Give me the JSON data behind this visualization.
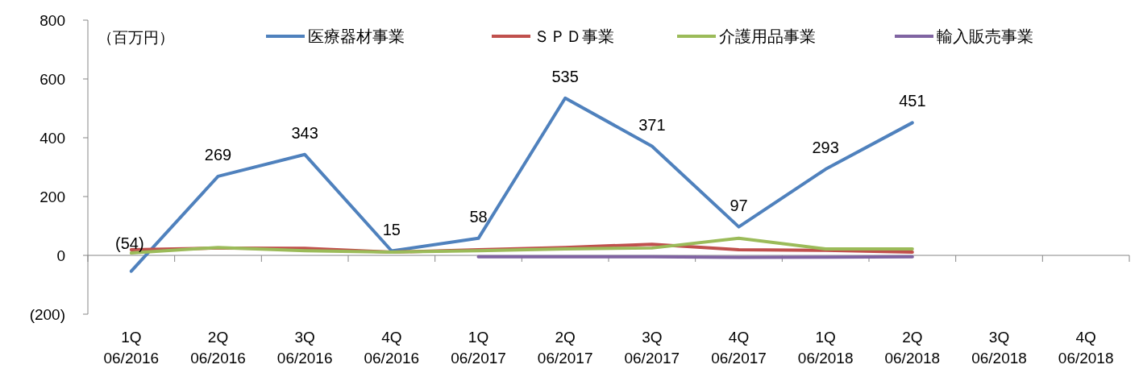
{
  "chart_data": {
    "type": "line",
    "annotations": [
      "（百万円）"
    ],
    "categories": [
      "1Q\n06/2016",
      "2Q\n06/2016",
      "3Q\n06/2016",
      "4Q\n06/2016",
      "1Q\n06/2017",
      "2Q\n06/2017",
      "3Q\n06/2017",
      "4Q\n06/2017",
      "1Q\n06/2018",
      "2Q\n06/2018",
      "3Q\n06/2018",
      "4Q\n06/2018"
    ],
    "series": [
      {
        "name": "医療器材事業",
        "color": "#4f81bd",
        "values": [
          -54,
          269,
          343,
          15,
          58,
          535,
          371,
          97,
          293,
          451,
          null,
          null
        ],
        "value_labels": [
          "(54)",
          "269",
          "343",
          "15",
          "58",
          "535",
          "371",
          "97",
          "293",
          "451",
          null,
          null
        ]
      },
      {
        "name": "ＳＰＤ事業",
        "color": "#c0504d",
        "values": [
          19,
          25,
          24,
          11,
          19,
          27,
          38,
          19,
          17,
          11,
          null,
          null
        ]
      },
      {
        "name": "介護用品事業",
        "color": "#9bbb59",
        "values": [
          8,
          27,
          16,
          11,
          16,
          22,
          25,
          58,
          22,
          22,
          null,
          null
        ]
      },
      {
        "name": "輸入販売事業",
        "color": "#8064a2",
        "values": [
          null,
          null,
          null,
          null,
          -5,
          -5,
          -5,
          -7,
          -6,
          -5,
          null,
          null
        ]
      }
    ],
    "ylim": [
      -200,
      800
    ],
    "yticks": [
      {
        "value": -200,
        "label": "(200)"
      },
      0,
      200,
      400,
      600,
      800
    ],
    "legend": "top",
    "marker": "none",
    "line_style": "solid"
  }
}
